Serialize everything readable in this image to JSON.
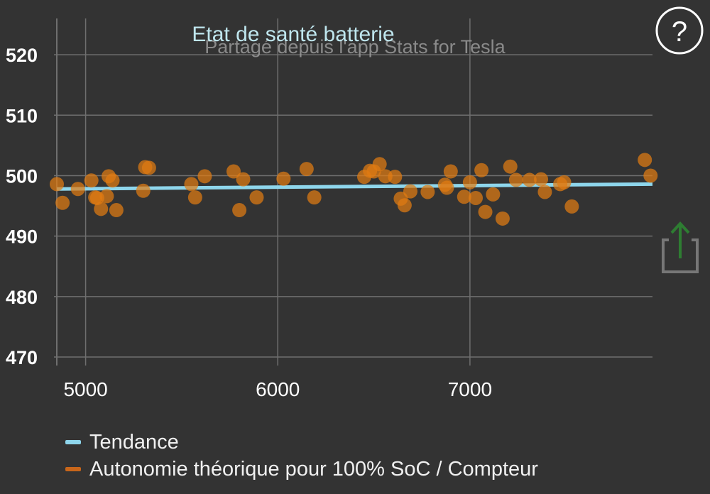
{
  "chart_data": {
    "type": "scatter",
    "title": "Etat de santé batterie",
    "subtitle": "Partagé depuis l'app Stats for Tesla",
    "xlabel": "",
    "ylabel": "",
    "xlim": [
      4850,
      7950
    ],
    "ylim": [
      470,
      526
    ],
    "x_ticks": [
      5000,
      6000,
      7000
    ],
    "y_ticks": [
      470,
      480,
      490,
      500,
      510,
      520
    ],
    "grid": true,
    "legend_position": "bottom-left",
    "series": [
      {
        "name": "Tendance",
        "kind": "line",
        "color": "#8ed6ec",
        "points": [
          [
            4850,
            497.8
          ],
          [
            7950,
            498.6
          ]
        ]
      },
      {
        "name": "Autonomie théorique pour 100% SoC / Compteur",
        "kind": "scatter",
        "color": "#e07b12",
        "points": [
          [
            4850,
            498.6
          ],
          [
            4880,
            495.5
          ],
          [
            4960,
            497.8
          ],
          [
            5030,
            499.2
          ],
          [
            5050,
            496.4
          ],
          [
            5060,
            496.3
          ],
          [
            5080,
            494.5
          ],
          [
            5110,
            496.6
          ],
          [
            5120,
            499.9
          ],
          [
            5140,
            499.2
          ],
          [
            5160,
            494.3
          ],
          [
            5300,
            497.5
          ],
          [
            5310,
            501.4
          ],
          [
            5330,
            501.3
          ],
          [
            5550,
            498.6
          ],
          [
            5570,
            496.4
          ],
          [
            5620,
            499.9
          ],
          [
            5770,
            500.7
          ],
          [
            5800,
            494.3
          ],
          [
            5820,
            499.4
          ],
          [
            5890,
            496.4
          ],
          [
            6030,
            499.5
          ],
          [
            6150,
            501.1
          ],
          [
            6190,
            496.4
          ],
          [
            6450,
            499.8
          ],
          [
            6480,
            500.8
          ],
          [
            6500,
            500.7
          ],
          [
            6530,
            501.9
          ],
          [
            6560,
            499.9
          ],
          [
            6610,
            499.8
          ],
          [
            6640,
            496.2
          ],
          [
            6660,
            495.1
          ],
          [
            6690,
            497.4
          ],
          [
            6780,
            497.3
          ],
          [
            6870,
            498.5
          ],
          [
            6880,
            498.0
          ],
          [
            6900,
            500.7
          ],
          [
            6970,
            496.5
          ],
          [
            7000,
            498.9
          ],
          [
            7030,
            496.3
          ],
          [
            7060,
            500.9
          ],
          [
            7080,
            494.0
          ],
          [
            7120,
            496.9
          ],
          [
            7170,
            492.9
          ],
          [
            7210,
            501.5
          ],
          [
            7240,
            499.3
          ],
          [
            7310,
            499.3
          ],
          [
            7370,
            499.4
          ],
          [
            7390,
            497.3
          ],
          [
            7470,
            498.6
          ],
          [
            7490,
            498.9
          ],
          [
            7530,
            494.9
          ],
          [
            7910,
            502.6
          ],
          [
            7940,
            500.0
          ]
        ]
      }
    ]
  },
  "icons": {
    "help": "help-circle-icon",
    "share": "share-icon"
  },
  "colors": {
    "background": "#333333",
    "grid": "#6f6f6f",
    "title": "#bfe6ee",
    "axis_label": "#ffffff",
    "trend": "#8ed6ec",
    "points": "#e07b12",
    "share_arrow": "#2e7d32"
  }
}
